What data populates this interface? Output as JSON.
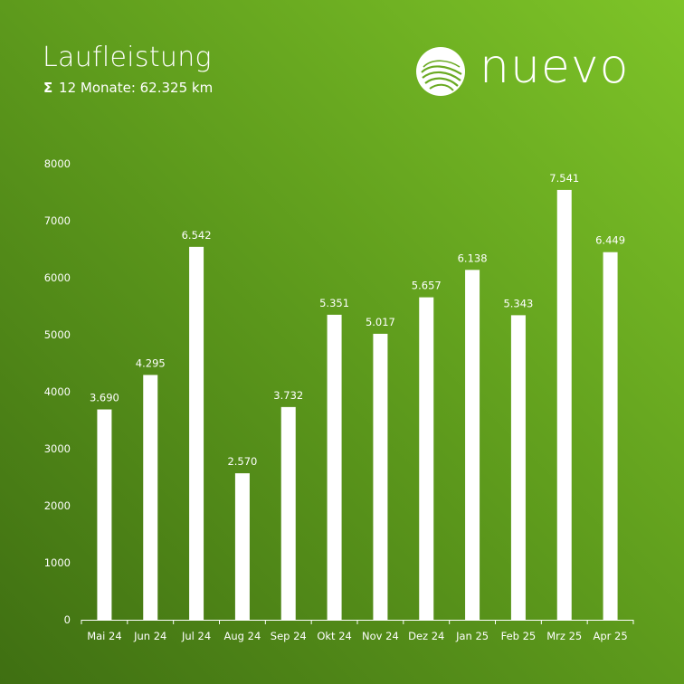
{
  "header": {
    "title": "Laufleistung",
    "sigma": "Σ",
    "summary": "12 Monate: 62.325 km"
  },
  "logo": {
    "text": "nuevo",
    "icon": "globe-icon"
  },
  "colors": {
    "background_light": "#7ec428",
    "background_dark": "#3f6f12",
    "bar": "#ffffff"
  },
  "chart_data": {
    "type": "bar",
    "title": "Laufleistung",
    "subtitle": "Σ 12 Monate: 62.325 km",
    "categories": [
      "Mai 24",
      "Jun 24",
      "Jul 24",
      "Aug 24",
      "Sep 24",
      "Okt 24",
      "Nov 24",
      "Dez 24",
      "Jan 25",
      "Feb 25",
      "Mrz 25",
      "Apr 25"
    ],
    "values": [
      3690,
      4295,
      6542,
      2570,
      3732,
      5351,
      5017,
      5657,
      6138,
      5343,
      7541,
      6449
    ],
    "value_labels": [
      "3.690",
      "4.295",
      "6.542",
      "2.570",
      "3.732",
      "5.351",
      "5.017",
      "5.657",
      "6.138",
      "5.343",
      "7.541",
      "6.449"
    ],
    "y_ticks": [
      0,
      1000,
      2000,
      3000,
      4000,
      5000,
      6000,
      7000,
      8000
    ],
    "ylim": [
      0,
      8000
    ],
    "xlabel": "",
    "ylabel": "",
    "grid": false,
    "legend": "none"
  }
}
